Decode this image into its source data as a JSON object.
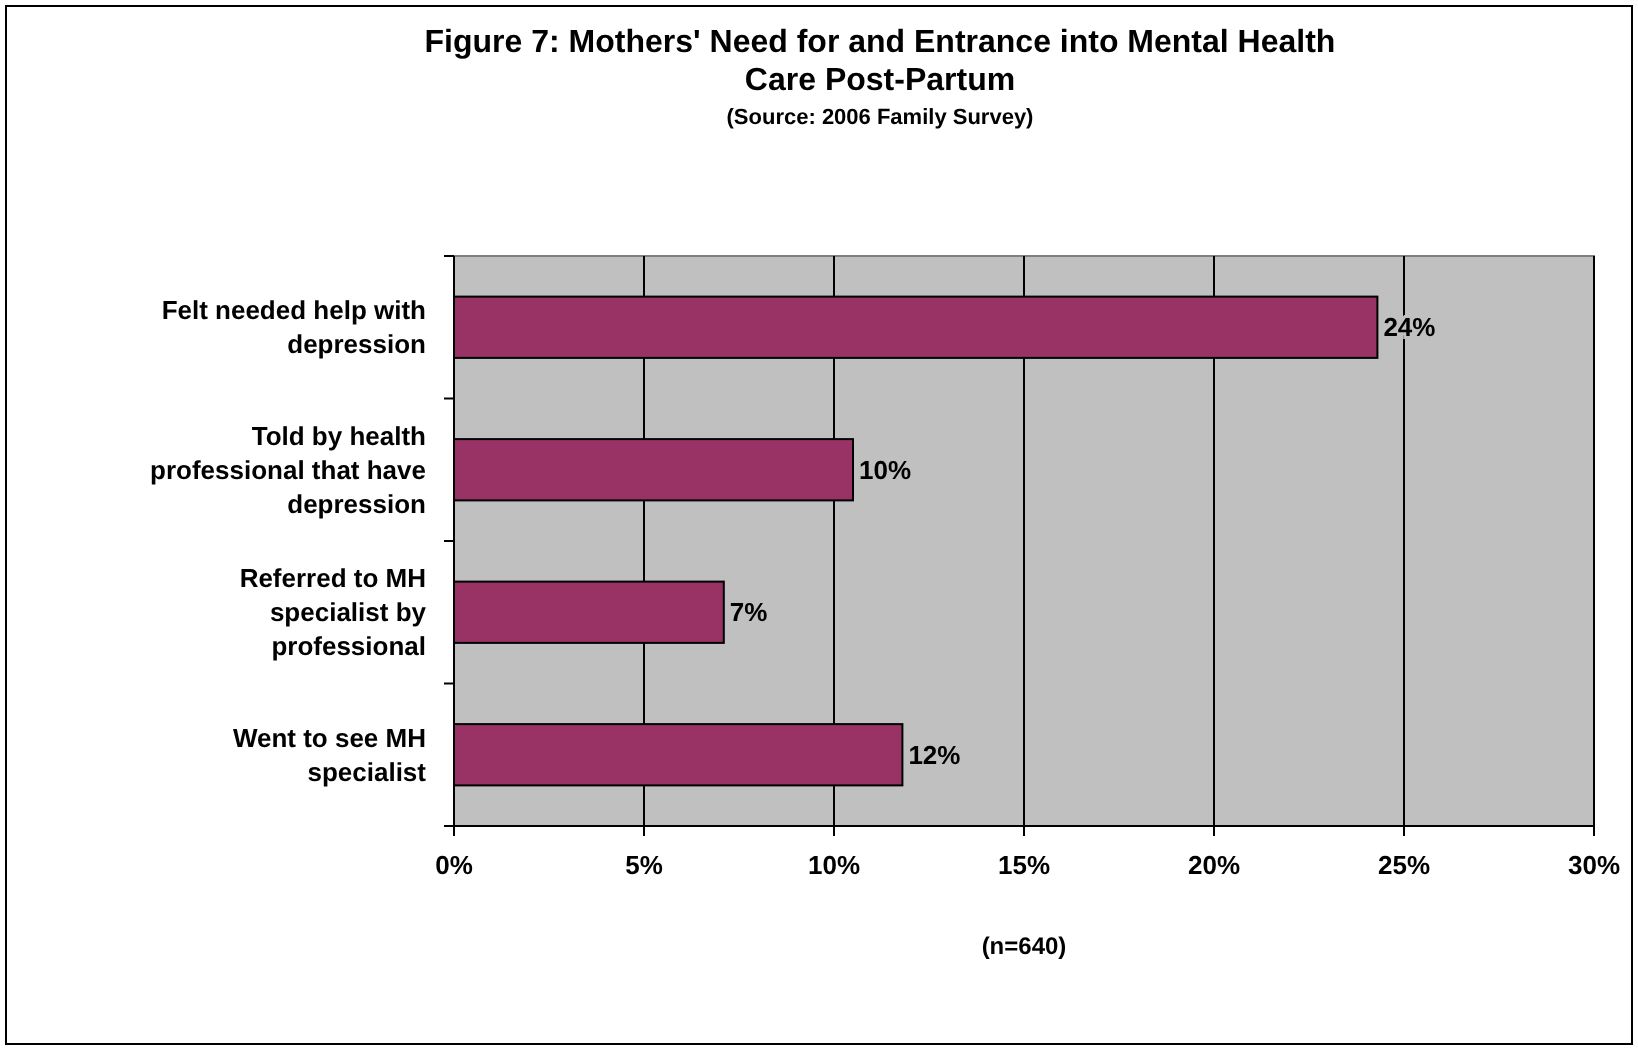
{
  "chart_data": {
    "type": "bar",
    "orientation": "horizontal",
    "title": "Figure 7: Mothers' Need for and Entrance into Mental Health Care Post-Partum",
    "subtitle": "(Source:  2006 Family Survey)",
    "xlabel": "(n=640)",
    "categories": [
      "Felt needed help with depression",
      "Told by health professional that have depression",
      "Referred to MH specialist by professional",
      "Went to see MH specialist"
    ],
    "values": [
      24.3,
      10.5,
      7.1,
      11.8
    ],
    "value_labels": [
      "24%",
      "10%",
      "7%",
      "12%"
    ],
    "color": "#993366",
    "xlim": [
      0,
      30
    ],
    "xticks": [
      {
        "value": 0,
        "label": "0%"
      },
      {
        "value": 5,
        "label": "5%"
      },
      {
        "value": 10,
        "label": "10%"
      },
      {
        "value": 15,
        "label": "15%"
      },
      {
        "value": 20,
        "label": "20%"
      },
      {
        "value": 25,
        "label": "25%"
      },
      {
        "value": 30,
        "label": "30%"
      }
    ],
    "grid": "x"
  }
}
